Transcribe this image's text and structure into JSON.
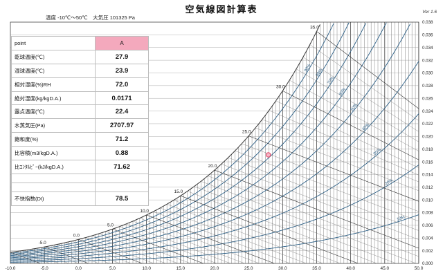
{
  "header": {
    "title": "空気線図計算表",
    "conditions": "温度 -10℃～50℃　大気圧 101325 Pa",
    "version": "Ver 1.6"
  },
  "table": {
    "point_label": "point",
    "point_name": "A",
    "rows": [
      {
        "label": "乾球温度(℃)",
        "value": "27.9"
      },
      {
        "label": "湿球温度(℃)",
        "value": "23.9"
      },
      {
        "label": "相対湿度(%)RH",
        "value": "72.0"
      },
      {
        "label": "絶対湿度(kg/kgD.A.)",
        "value": "0.0171"
      },
      {
        "label": "露点温度(℃)",
        "value": "22.4"
      },
      {
        "label": "水蒸気圧(Pa)",
        "value": "2707.97"
      },
      {
        "label": "飽和度(%)",
        "value": "71.2"
      },
      {
        "label": "比容積(m3/kgD.A.)",
        "value": "0.88"
      },
      {
        "label": "比ｴﾝﾀﾙﾋﾟｰ(kJ/kgD.A.)",
        "value": "71.62"
      }
    ],
    "di_label": "不快指数(DI)",
    "di_value": "78.5"
  },
  "chart_data": {
    "type": "line",
    "x_range": [
      -10,
      50
    ],
    "y_range": [
      0,
      0.038
    ],
    "x_ticks": [
      "-10.0",
      "-5.0",
      "0.0",
      "5.0",
      "10.0",
      "15.0",
      "20.0",
      "25.0",
      "30.0",
      "35.0",
      "40.0",
      "45.0",
      "50.0"
    ],
    "y_ticks": [
      "0.000",
      "0.002",
      "0.004",
      "0.006",
      "0.008",
      "0.010",
      "0.012",
      "0.014",
      "0.016",
      "0.018",
      "0.020",
      "0.022",
      "0.024",
      "0.026",
      "0.028",
      "0.030",
      "0.032",
      "0.034",
      "0.036",
      "0.038"
    ],
    "wet_bulb_labels": [
      "-5.0",
      "0.0",
      "5.0",
      "10.0",
      "15.0",
      "20.0",
      "25.0",
      "30.0",
      "35.0"
    ],
    "rh_labels": [
      "10%",
      "20%",
      "30%",
      "40%",
      "50%",
      "60%",
      "70%",
      "80%",
      "90%"
    ],
    "grid": true,
    "point": {
      "label": "A",
      "dry_bulb": 27.9,
      "humidity_ratio": 0.0171,
      "color": "#e0506e"
    },
    "line_color": "#2c5f86"
  }
}
